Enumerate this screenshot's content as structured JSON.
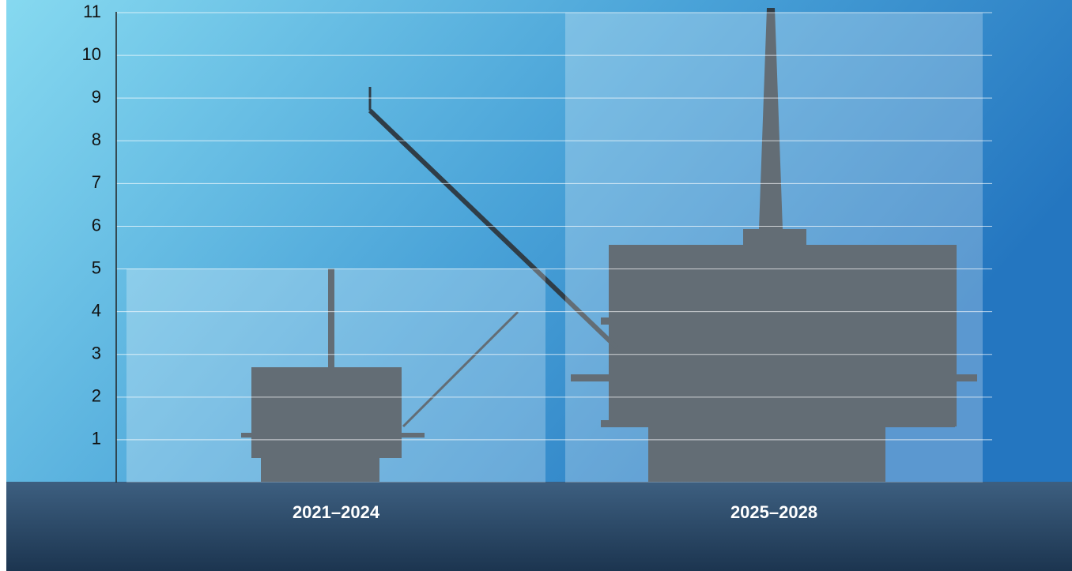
{
  "chart_data": {
    "type": "bar",
    "categories": [
      "2021–2024",
      "2025–2028"
    ],
    "values": [
      5,
      11
    ],
    "color": "#ffffff",
    "ylim": [
      0,
      11
    ],
    "yticks": [
      1,
      2,
      3,
      4,
      5,
      6,
      7,
      8,
      9,
      10,
      11
    ],
    "grid": true
  }
}
